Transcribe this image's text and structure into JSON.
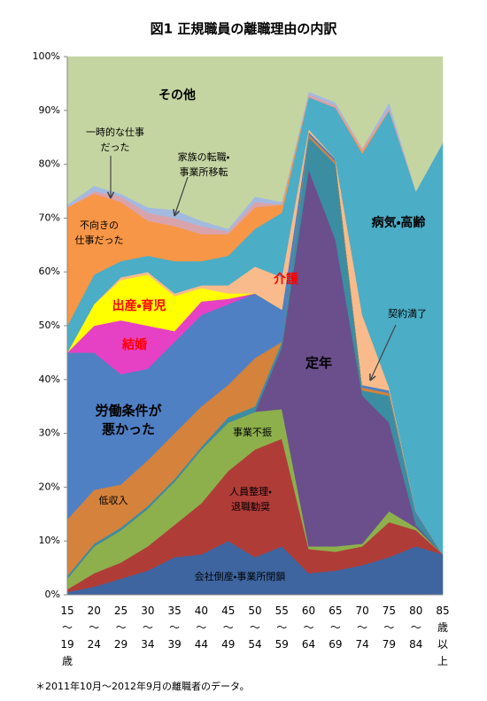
{
  "chart_data": {
    "type": "stacked_area",
    "title": "図1 正規職員の離職理由の内訳",
    "footnote": "＊2011年10月〜2012年9月の離職者のデータ。",
    "categories": [
      "15〜19歳",
      "20〜24",
      "25〜29",
      "30〜34",
      "35〜39",
      "40〜44",
      "45〜49",
      "50〜54",
      "55〜59",
      "60〜64",
      "65〜69",
      "70〜74",
      "75〜79",
      "80〜84",
      "85歳以上"
    ],
    "ylim": [
      0,
      100
    ],
    "yticks": [
      {
        "value": 0,
        "label": "0%"
      },
      {
        "value": 10,
        "label": "10%"
      },
      {
        "value": 20,
        "label": "20%"
      },
      {
        "value": 30,
        "label": "30%"
      },
      {
        "value": 40,
        "label": "40%"
      },
      {
        "value": 50,
        "label": "50%"
      },
      {
        "value": 60,
        "label": "60%"
      },
      {
        "value": 70,
        "label": "70%"
      },
      {
        "value": 80,
        "label": "80%"
      },
      {
        "value": 90,
        "label": "90%"
      },
      {
        "value": 100,
        "label": "100%"
      }
    ],
    "series": [
      {
        "name": "会社倒産・事業所閉鎖",
        "color": "#3e65a0",
        "values": [
          0.5,
          1.5,
          3,
          4.5,
          7,
          7.5,
          10,
          7,
          9,
          4,
          4.5,
          5.5,
          7,
          9,
          7.5
        ]
      },
      {
        "name": "人員整理・退職勧奨",
        "color": "#b03c38",
        "values": [
          0.5,
          2.5,
          3,
          4.5,
          6,
          9.5,
          13,
          20,
          20,
          4.5,
          3.5,
          3.5,
          6.5,
          3,
          0
        ]
      },
      {
        "name": "事業不振",
        "color": "#8db04c",
        "values": [
          2,
          5,
          6,
          7,
          8,
          10,
          9,
          7,
          5.5,
          0.5,
          1,
          0.5,
          2,
          0.5,
          0
        ]
      },
      {
        "name": "定年",
        "color": "#6a4f8c",
        "values": [
          0,
          0,
          0,
          0,
          0,
          0,
          0,
          0,
          11.5,
          70,
          57,
          27.5,
          16.5,
          0.5,
          0
        ]
      },
      {
        "name": "契約満了",
        "color": "#3b8da2",
        "values": [
          0.5,
          0.5,
          0.5,
          0.5,
          0.5,
          0.5,
          1,
          1,
          1,
          6,
          14,
          1,
          5,
          2,
          0
        ]
      },
      {
        "name": "低収入",
        "color": "#d5823c",
        "values": [
          10.5,
          10,
          8,
          8.5,
          8.5,
          7.5,
          6,
          9,
          0,
          0.5,
          0.5,
          0.5,
          0.5,
          0,
          0
        ]
      },
      {
        "name": "労働条件が悪かった",
        "color": "#4f80c4",
        "values": [
          31,
          25.5,
          20.5,
          17,
          17,
          17,
          15,
          12,
          6,
          0.5,
          0.5,
          0.5,
          0.5,
          0.5,
          0
        ]
      },
      {
        "name": "結婚",
        "color": "#e640c4",
        "values": [
          0,
          5,
          10,
          8,
          2,
          2.5,
          1,
          0,
          0,
          0,
          0,
          0,
          0,
          0,
          0
        ]
      },
      {
        "name": "出産・育児",
        "color": "#ffff00",
        "values": [
          0,
          4,
          7.5,
          9.5,
          6.5,
          2.5,
          1,
          0,
          0,
          0,
          0,
          0,
          0,
          0,
          0
        ]
      },
      {
        "name": "介護",
        "color": "#f9bb8c",
        "values": [
          0,
          0,
          0.5,
          0.5,
          0.5,
          0.5,
          1.5,
          5,
          6,
          0.5,
          0,
          13,
          0.5,
          0,
          0
        ]
      },
      {
        "name": "病気・高齢",
        "color": "#4badc6",
        "values": [
          5,
          5.5,
          3,
          3,
          6,
          4.5,
          5.5,
          7,
          12,
          6,
          9.5,
          30,
          51.5,
          59.5,
          76.5
        ]
      },
      {
        "name": "不向きの仕事だった",
        "color": "#f79646",
        "values": [
          22,
          15,
          11,
          6.5,
          6.5,
          5,
          4,
          4,
          1.5,
          0,
          0,
          0.5,
          0,
          0,
          0
        ]
      },
      {
        "name": "家族の転職・事業所移転",
        "color": "#d9a3ab",
        "values": [
          0,
          0.5,
          1,
          1.5,
          1.5,
          1.5,
          0.5,
          1,
          0,
          0.5,
          0.5,
          0.5,
          0.5,
          0,
          0
        ]
      },
      {
        "name": "一時的な仕事だった",
        "color": "#a3badf",
        "values": [
          0.5,
          1,
          0.5,
          1,
          1.5,
          1,
          0.5,
          1,
          0.5,
          0.5,
          0.5,
          0,
          1,
          0,
          0
        ]
      },
      {
        "name": "その他",
        "color": "#c5d5a2",
        "values": [
          27.5,
          24,
          25.5,
          28,
          28.5,
          30.5,
          32,
          26,
          27,
          6.5,
          8.5,
          17,
          8.5,
          25,
          16
        ]
      }
    ]
  }
}
